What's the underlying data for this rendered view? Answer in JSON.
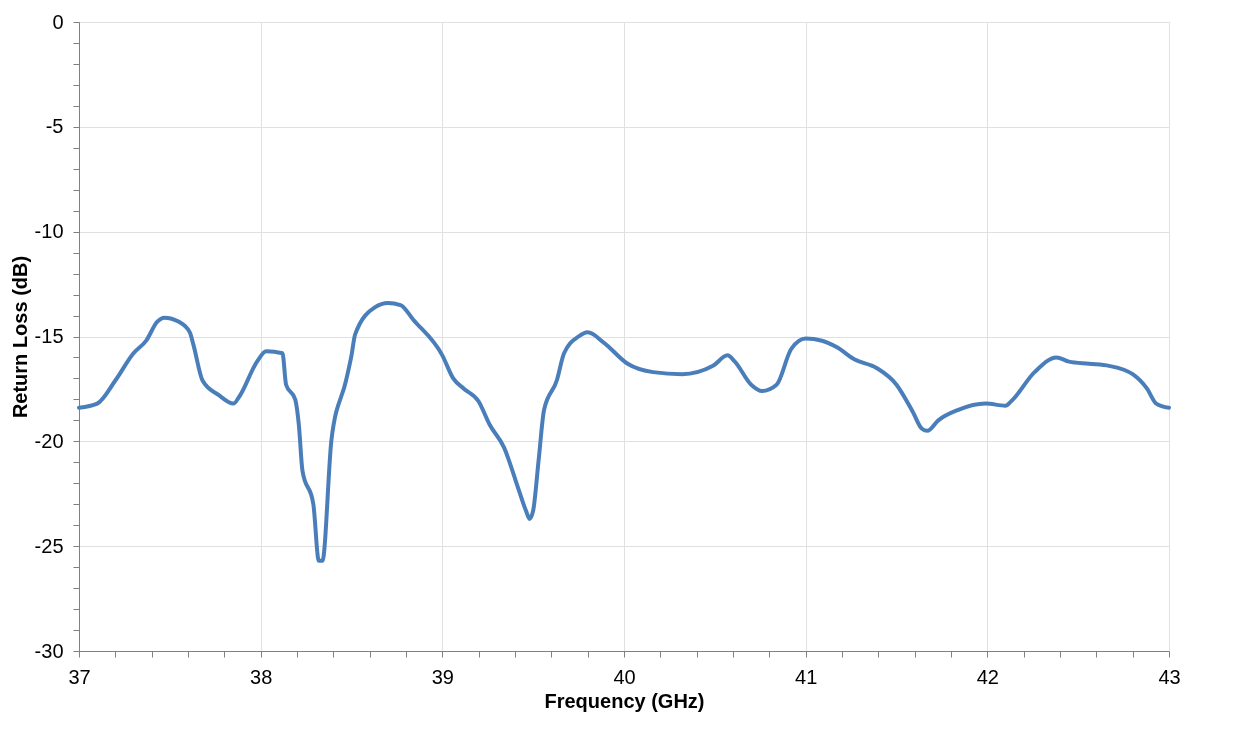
{
  "chart_data": {
    "type": "line",
    "xlabel": "Frequency (GHz)",
    "ylabel": "Return Loss (dB)",
    "xlim": [
      37,
      43
    ],
    "ylim": [
      -30,
      0
    ],
    "xticks": [
      37,
      {
        "value": 37.2,
        "label": null
      },
      {
        "value": 37.4,
        "label": null
      },
      {
        "value": 37.6,
        "label": null
      },
      {
        "value": 37.8,
        "label": null
      },
      38,
      {
        "value": 38.2,
        "label": null
      },
      {
        "value": 38.4,
        "label": null
      },
      {
        "value": 38.6,
        "label": null
      },
      {
        "value": 38.8,
        "label": null
      },
      39,
      {
        "value": 39.2,
        "label": null
      },
      {
        "value": 39.4,
        "label": null
      },
      {
        "value": 39.6,
        "label": null
      },
      {
        "value": 39.8,
        "label": null
      },
      40,
      {
        "value": 40.2,
        "label": null
      },
      {
        "value": 40.4,
        "label": null
      },
      {
        "value": 40.6,
        "label": null
      },
      {
        "value": 40.8,
        "label": null
      },
      41,
      {
        "value": 41.2,
        "label": null
      },
      {
        "value": 41.4,
        "label": null
      },
      {
        "value": 41.6,
        "label": null
      },
      {
        "value": 41.8,
        "label": null
      },
      42,
      {
        "value": 42.2,
        "label": null
      },
      {
        "value": 42.4,
        "label": null
      },
      {
        "value": 42.6,
        "label": null
      },
      {
        "value": 42.8,
        "label": null
      },
      43
    ],
    "yticks": [
      -30,
      {
        "value": -29,
        "label": null
      },
      {
        "value": -28,
        "label": null
      },
      {
        "value": -27,
        "label": null
      },
      {
        "value": -26,
        "label": null
      },
      -25,
      {
        "value": -24,
        "label": null
      },
      {
        "value": -23,
        "label": null
      },
      {
        "value": -22,
        "label": null
      },
      {
        "value": -21,
        "label": null
      },
      -20,
      {
        "value": -19,
        "label": null
      },
      {
        "value": -18,
        "label": null
      },
      {
        "value": -17,
        "label": null
      },
      {
        "value": -16,
        "label": null
      },
      -15,
      {
        "value": -14,
        "label": null
      },
      {
        "value": -13,
        "label": null
      },
      {
        "value": -12,
        "label": null
      },
      {
        "value": -11,
        "label": null
      },
      -10,
      {
        "value": -9,
        "label": null
      },
      {
        "value": -8,
        "label": null
      },
      {
        "value": -7,
        "label": null
      },
      {
        "value": -6,
        "label": null
      },
      -5,
      {
        "value": -4,
        "label": null
      },
      {
        "value": -3,
        "label": null
      },
      {
        "value": -2,
        "label": null
      },
      {
        "value": -1,
        "label": null
      },
      0
    ],
    "grid": true,
    "marker": "none",
    "line_style": "solid",
    "series": [
      {
        "color": "#4a7ebb",
        "x": [
          37.0,
          37.1,
          37.2,
          37.3,
          37.37,
          37.43,
          37.47,
          37.55,
          37.61,
          37.63,
          37.68,
          37.77,
          37.85,
          37.88,
          37.98,
          38.03,
          38.12,
          38.14,
          38.19,
          38.21,
          38.23,
          38.29,
          38.32,
          38.34,
          38.39,
          38.47,
          38.5,
          38.52,
          38.63,
          38.7,
          38.77,
          38.84,
          39.0,
          39.06,
          39.12,
          39.2,
          39.26,
          39.34,
          39.42,
          39.46,
          39.48,
          39.5,
          39.53,
          39.56,
          39.63,
          39.67,
          39.75,
          39.8,
          39.89,
          40.02,
          40.16,
          40.32,
          40.49,
          40.57,
          40.61,
          40.7,
          40.76,
          40.84,
          40.92,
          41.0,
          41.09,
          41.17,
          41.27,
          41.39,
          41.5,
          41.59,
          41.64,
          41.67,
          41.73,
          41.84,
          41.99,
          42.1,
          42.13,
          42.26,
          42.38,
          42.45,
          42.56,
          42.67,
          42.8,
          42.88,
          42.93,
          43.0
        ],
        "values": [
          -18.4,
          -18.2,
          -17.1,
          -15.8,
          -15.2,
          -14.3,
          -14.1,
          -14.3,
          -14.8,
          -15.4,
          -17.1,
          -17.8,
          -18.2,
          -17.9,
          -16.2,
          -15.7,
          -15.8,
          -17.3,
          -18.0,
          -19.2,
          -21.4,
          -23.0,
          -25.7,
          -25.7,
          -19.9,
          -17.1,
          -15.9,
          -14.9,
          -13.6,
          -13.4,
          -13.5,
          -14.2,
          -15.9,
          -17.0,
          -17.5,
          -18.1,
          -19.2,
          -20.3,
          -22.3,
          -23.3,
          -23.7,
          -23.3,
          -20.9,
          -18.5,
          -17.1,
          -15.8,
          -15.0,
          -14.8,
          -15.3,
          -16.3,
          -16.7,
          -16.8,
          -16.4,
          -15.9,
          -16.2,
          -17.3,
          -17.6,
          -17.3,
          -15.6,
          -15.1,
          -15.2,
          -15.5,
          -16.1,
          -16.5,
          -17.3,
          -18.6,
          -19.4,
          -19.5,
          -19.0,
          -18.5,
          -18.2,
          -18.3,
          -18.1,
          -16.7,
          -16.0,
          -16.2,
          -16.3,
          -16.4,
          -16.8,
          -17.5,
          -18.2,
          -18.4
        ]
      }
    ]
  }
}
